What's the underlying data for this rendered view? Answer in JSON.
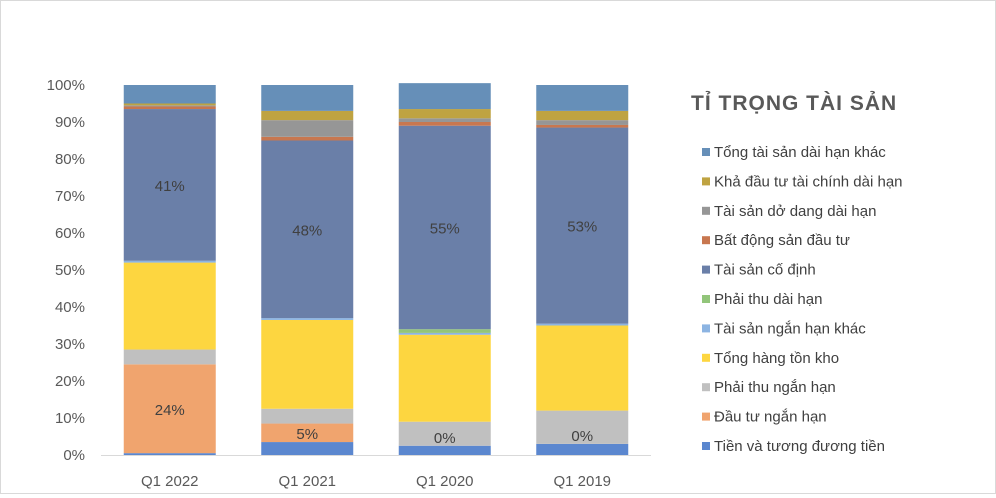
{
  "chart_data": {
    "type": "bar",
    "stacked": true,
    "title": "TỈ TRỌNG TÀI SẢN",
    "categories": [
      "Q1 2022",
      "Q1 2021",
      "Q1 2020",
      "Q1 2019"
    ],
    "ylim": [
      0,
      100
    ],
    "yticks": [
      "0%",
      "10%",
      "20%",
      "30%",
      "40%",
      "50%",
      "60%",
      "70%",
      "80%",
      "90%",
      "100%"
    ],
    "legend_position": "right",
    "grid": false,
    "series": [
      {
        "name": "Tiền và tương đương tiền",
        "color": "#5b87cf",
        "values": [
          0.5,
          3.5,
          2.5,
          3.0
        ],
        "labels": [
          "",
          "",
          "",
          ""
        ]
      },
      {
        "name": "Đầu tư ngắn hạn",
        "color": "#f0a46e",
        "values": [
          24,
          5,
          0,
          0
        ],
        "labels": [
          "24%",
          "5%",
          "0%",
          "0%"
        ]
      },
      {
        "name": "Phải thu ngắn hạn",
        "color": "#c0c0c0",
        "values": [
          4.0,
          4.0,
          6.5,
          9.0
        ],
        "labels": [
          "",
          "",
          "",
          ""
        ]
      },
      {
        "name": "Tổng hàng tồn kho",
        "color": "#fdd640",
        "values": [
          23.5,
          24.0,
          23.5,
          23.0
        ],
        "labels": [
          "",
          "",
          "",
          ""
        ]
      },
      {
        "name": "Tài sản ngắn hạn khác",
        "color": "#8cb4e2",
        "values": [
          0.5,
          0.5,
          0.5,
          0.5
        ],
        "labels": [
          "",
          "",
          "",
          ""
        ]
      },
      {
        "name": "Phải thu dài hạn",
        "color": "#92c57a",
        "values": [
          0,
          0,
          1.0,
          0
        ],
        "labels": [
          "",
          "",
          "",
          ""
        ]
      },
      {
        "name": "Tài sản cố định",
        "color": "#6a7fa8",
        "values": [
          41,
          48,
          55,
          53
        ],
        "labels": [
          "41%",
          "48%",
          "55%",
          "53%"
        ]
      },
      {
        "name": "Bất động sản đầu tư",
        "color": "#c8774f",
        "values": [
          0.7,
          1.0,
          1.0,
          0.7
        ],
        "labels": [
          "",
          "",
          "",
          ""
        ]
      },
      {
        "name": "Tài sản dở dang dài hạn",
        "color": "#969696",
        "values": [
          0.3,
          4.5,
          1.0,
          1.3
        ],
        "labels": [
          "",
          "",
          "",
          ""
        ]
      },
      {
        "name": "Khả đầu tư tài chính dài hạn",
        "color": "#bfa341",
        "values": [
          0.5,
          2.5,
          2.5,
          2.5
        ],
        "labels": [
          "",
          "",
          "",
          ""
        ]
      },
      {
        "name": "Tổng tài sản dài hạn khác",
        "color": "#668fb8",
        "values": [
          5.0,
          7.0,
          7.0,
          7.0
        ],
        "labels": [
          "",
          "",
          "",
          ""
        ]
      }
    ]
  }
}
